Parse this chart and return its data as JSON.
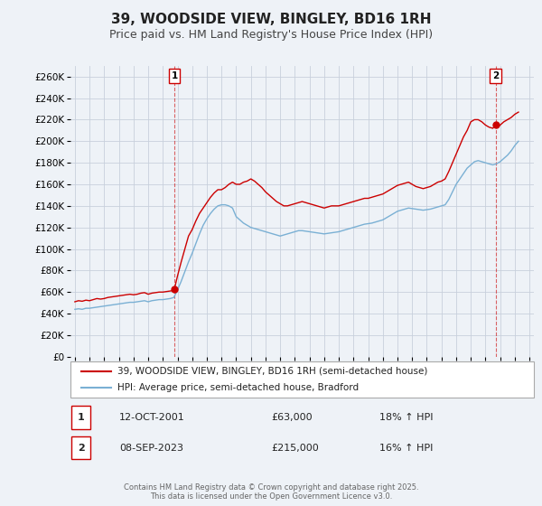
{
  "title": "39, WOODSIDE VIEW, BINGLEY, BD16 1RH",
  "subtitle": "Price paid vs. HM Land Registry's House Price Index (HPI)",
  "title_fontsize": 11,
  "subtitle_fontsize": 9,
  "background_color": "#eef2f7",
  "plot_bg_color": "#eef2f7",
  "grid_color": "#c8d0dc",
  "red_color": "#cc0000",
  "blue_color": "#7ab0d4",
  "ylim": [
    0,
    270000
  ],
  "yticks": [
    0,
    20000,
    40000,
    60000,
    80000,
    100000,
    120000,
    140000,
    160000,
    180000,
    200000,
    220000,
    240000,
    260000
  ],
  "xlim": [
    1994.7,
    2026.3
  ],
  "xticks": [
    1995,
    1996,
    1997,
    1998,
    1999,
    2000,
    2001,
    2002,
    2003,
    2004,
    2005,
    2006,
    2007,
    2008,
    2009,
    2010,
    2011,
    2012,
    2013,
    2014,
    2015,
    2016,
    2017,
    2018,
    2019,
    2020,
    2021,
    2022,
    2023,
    2024,
    2025,
    2026
  ],
  "legend_label_red": "39, WOODSIDE VIEW, BINGLEY, BD16 1RH (semi-detached house)",
  "legend_label_blue": "HPI: Average price, semi-detached house, Bradford",
  "marker1_x": 2001.79,
  "marker1_y": 63000,
  "marker2_x": 2023.69,
  "marker2_y": 215000,
  "annotation1_label": "1",
  "annotation2_label": "2",
  "table_data": [
    [
      "1",
      "12-OCT-2001",
      "£63,000",
      "18% ↑ HPI"
    ],
    [
      "2",
      "08-SEP-2023",
      "£215,000",
      "16% ↑ HPI"
    ]
  ],
  "footer": "Contains HM Land Registry data © Crown copyright and database right 2025.\nThis data is licensed under the Open Government Licence v3.0.",
  "red_hpi_data": [
    [
      1995.0,
      51000
    ],
    [
      1995.25,
      52000
    ],
    [
      1995.5,
      51500
    ],
    [
      1995.75,
      52500
    ],
    [
      1996.0,
      52000
    ],
    [
      1996.25,
      53000
    ],
    [
      1996.5,
      54000
    ],
    [
      1996.75,
      53500
    ],
    [
      1997.0,
      54000
    ],
    [
      1997.25,
      55000
    ],
    [
      1997.5,
      55500
    ],
    [
      1997.75,
      56000
    ],
    [
      1998.0,
      56500
    ],
    [
      1998.25,
      57000
    ],
    [
      1998.5,
      57500
    ],
    [
      1998.75,
      58000
    ],
    [
      1999.0,
      57500
    ],
    [
      1999.25,
      58000
    ],
    [
      1999.5,
      59000
    ],
    [
      1999.75,
      59500
    ],
    [
      2000.0,
      58000
    ],
    [
      2000.25,
      59000
    ],
    [
      2000.5,
      59500
    ],
    [
      2000.75,
      60000
    ],
    [
      2001.0,
      60000
    ],
    [
      2001.25,
      60500
    ],
    [
      2001.5,
      61000
    ],
    [
      2001.75,
      61500
    ],
    [
      2001.79,
      63000
    ],
    [
      2002.0,
      75000
    ],
    [
      2002.25,
      88000
    ],
    [
      2002.5,
      100000
    ],
    [
      2002.75,
      112000
    ],
    [
      2003.0,
      118000
    ],
    [
      2003.25,
      126000
    ],
    [
      2003.5,
      133000
    ],
    [
      2003.75,
      138000
    ],
    [
      2004.0,
      143000
    ],
    [
      2004.25,
      148000
    ],
    [
      2004.5,
      152000
    ],
    [
      2004.75,
      155000
    ],
    [
      2005.0,
      155000
    ],
    [
      2005.25,
      157000
    ],
    [
      2005.5,
      160000
    ],
    [
      2005.75,
      162000
    ],
    [
      2006.0,
      160000
    ],
    [
      2006.25,
      160000
    ],
    [
      2006.5,
      162000
    ],
    [
      2006.75,
      163000
    ],
    [
      2007.0,
      165000
    ],
    [
      2007.25,
      163000
    ],
    [
      2007.5,
      160000
    ],
    [
      2007.75,
      157000
    ],
    [
      2008.0,
      153000
    ],
    [
      2008.25,
      150000
    ],
    [
      2008.5,
      147000
    ],
    [
      2008.75,
      144000
    ],
    [
      2009.0,
      142000
    ],
    [
      2009.25,
      140000
    ],
    [
      2009.5,
      140000
    ],
    [
      2009.75,
      141000
    ],
    [
      2010.0,
      142000
    ],
    [
      2010.25,
      143000
    ],
    [
      2010.5,
      144000
    ],
    [
      2010.75,
      143000
    ],
    [
      2011.0,
      142000
    ],
    [
      2011.25,
      141000
    ],
    [
      2011.5,
      140000
    ],
    [
      2011.75,
      139000
    ],
    [
      2012.0,
      138000
    ],
    [
      2012.25,
      139000
    ],
    [
      2012.5,
      140000
    ],
    [
      2012.75,
      140000
    ],
    [
      2013.0,
      140000
    ],
    [
      2013.25,
      141000
    ],
    [
      2013.5,
      142000
    ],
    [
      2013.75,
      143000
    ],
    [
      2014.0,
      144000
    ],
    [
      2014.25,
      145000
    ],
    [
      2014.5,
      146000
    ],
    [
      2014.75,
      147000
    ],
    [
      2015.0,
      147000
    ],
    [
      2015.25,
      148000
    ],
    [
      2015.5,
      149000
    ],
    [
      2015.75,
      150000
    ],
    [
      2016.0,
      151000
    ],
    [
      2016.25,
      153000
    ],
    [
      2016.5,
      155000
    ],
    [
      2016.75,
      157000
    ],
    [
      2017.0,
      159000
    ],
    [
      2017.25,
      160000
    ],
    [
      2017.5,
      161000
    ],
    [
      2017.75,
      162000
    ],
    [
      2018.0,
      160000
    ],
    [
      2018.25,
      158000
    ],
    [
      2018.5,
      157000
    ],
    [
      2018.75,
      156000
    ],
    [
      2019.0,
      157000
    ],
    [
      2019.25,
      158000
    ],
    [
      2019.5,
      160000
    ],
    [
      2019.75,
      162000
    ],
    [
      2020.0,
      163000
    ],
    [
      2020.25,
      165000
    ],
    [
      2020.5,
      172000
    ],
    [
      2020.75,
      180000
    ],
    [
      2021.0,
      188000
    ],
    [
      2021.25,
      196000
    ],
    [
      2021.5,
      204000
    ],
    [
      2021.75,
      210000
    ],
    [
      2022.0,
      218000
    ],
    [
      2022.25,
      220000
    ],
    [
      2022.5,
      220000
    ],
    [
      2022.75,
      218000
    ],
    [
      2023.0,
      215000
    ],
    [
      2023.25,
      213000
    ],
    [
      2023.5,
      212000
    ],
    [
      2023.69,
      215000
    ],
    [
      2023.75,
      213000
    ],
    [
      2024.0,
      215000
    ],
    [
      2024.25,
      218000
    ],
    [
      2024.5,
      220000
    ],
    [
      2024.75,
      222000
    ],
    [
      2025.0,
      225000
    ],
    [
      2025.25,
      227000
    ]
  ],
  "blue_hpi_data": [
    [
      1995.0,
      44000
    ],
    [
      1995.25,
      44500
    ],
    [
      1995.5,
      44000
    ],
    [
      1995.75,
      45000
    ],
    [
      1996.0,
      45000
    ],
    [
      1996.25,
      45500
    ],
    [
      1996.5,
      46000
    ],
    [
      1996.75,
      46500
    ],
    [
      1997.0,
      47000
    ],
    [
      1997.25,
      47500
    ],
    [
      1997.5,
      48000
    ],
    [
      1997.75,
      48500
    ],
    [
      1998.0,
      49000
    ],
    [
      1998.25,
      49500
    ],
    [
      1998.5,
      50000
    ],
    [
      1998.75,
      50500
    ],
    [
      1999.0,
      50500
    ],
    [
      1999.25,
      51000
    ],
    [
      1999.5,
      51500
    ],
    [
      1999.75,
      52000
    ],
    [
      2000.0,
      51000
    ],
    [
      2000.25,
      52000
    ],
    [
      2000.5,
      52500
    ],
    [
      2000.75,
      53000
    ],
    [
      2001.0,
      53000
    ],
    [
      2001.25,
      53500
    ],
    [
      2001.5,
      54000
    ],
    [
      2001.75,
      55000
    ],
    [
      2002.0,
      62000
    ],
    [
      2002.25,
      70000
    ],
    [
      2002.5,
      79000
    ],
    [
      2002.75,
      88000
    ],
    [
      2003.0,
      96000
    ],
    [
      2003.25,
      105000
    ],
    [
      2003.5,
      114000
    ],
    [
      2003.75,
      122000
    ],
    [
      2004.0,
      128000
    ],
    [
      2004.25,
      133000
    ],
    [
      2004.5,
      137000
    ],
    [
      2004.75,
      140000
    ],
    [
      2005.0,
      141000
    ],
    [
      2005.25,
      141000
    ],
    [
      2005.5,
      140000
    ],
    [
      2005.75,
      138000
    ],
    [
      2006.0,
      130000
    ],
    [
      2006.25,
      127000
    ],
    [
      2006.5,
      124000
    ],
    [
      2006.75,
      122000
    ],
    [
      2007.0,
      120000
    ],
    [
      2007.25,
      119000
    ],
    [
      2007.5,
      118000
    ],
    [
      2007.75,
      117000
    ],
    [
      2008.0,
      116000
    ],
    [
      2008.25,
      115000
    ],
    [
      2008.5,
      114000
    ],
    [
      2008.75,
      113000
    ],
    [
      2009.0,
      112000
    ],
    [
      2009.25,
      113000
    ],
    [
      2009.5,
      114000
    ],
    [
      2009.75,
      115000
    ],
    [
      2010.0,
      116000
    ],
    [
      2010.25,
      117000
    ],
    [
      2010.5,
      117000
    ],
    [
      2010.75,
      116500
    ],
    [
      2011.0,
      116000
    ],
    [
      2011.25,
      115500
    ],
    [
      2011.5,
      115000
    ],
    [
      2011.75,
      114500
    ],
    [
      2012.0,
      114000
    ],
    [
      2012.25,
      114500
    ],
    [
      2012.5,
      115000
    ],
    [
      2012.75,
      115500
    ],
    [
      2013.0,
      116000
    ],
    [
      2013.25,
      117000
    ],
    [
      2013.5,
      118000
    ],
    [
      2013.75,
      119000
    ],
    [
      2014.0,
      120000
    ],
    [
      2014.25,
      121000
    ],
    [
      2014.5,
      122000
    ],
    [
      2014.75,
      123000
    ],
    [
      2015.0,
      123500
    ],
    [
      2015.25,
      124000
    ],
    [
      2015.5,
      125000
    ],
    [
      2015.75,
      126000
    ],
    [
      2016.0,
      127000
    ],
    [
      2016.25,
      129000
    ],
    [
      2016.5,
      131000
    ],
    [
      2016.75,
      133000
    ],
    [
      2017.0,
      135000
    ],
    [
      2017.25,
      136000
    ],
    [
      2017.5,
      137000
    ],
    [
      2017.75,
      138000
    ],
    [
      2018.0,
      137500
    ],
    [
      2018.25,
      137000
    ],
    [
      2018.5,
      136500
    ],
    [
      2018.75,
      136000
    ],
    [
      2019.0,
      136500
    ],
    [
      2019.25,
      137000
    ],
    [
      2019.5,
      138000
    ],
    [
      2019.75,
      139000
    ],
    [
      2020.0,
      140000
    ],
    [
      2020.25,
      141000
    ],
    [
      2020.5,
      146000
    ],
    [
      2020.75,
      153000
    ],
    [
      2021.0,
      160000
    ],
    [
      2021.25,
      165000
    ],
    [
      2021.5,
      170000
    ],
    [
      2021.75,
      175000
    ],
    [
      2022.0,
      178000
    ],
    [
      2022.25,
      181000
    ],
    [
      2022.5,
      182000
    ],
    [
      2022.75,
      181000
    ],
    [
      2023.0,
      180000
    ],
    [
      2023.25,
      179000
    ],
    [
      2023.5,
      178000
    ],
    [
      2023.75,
      179000
    ],
    [
      2024.0,
      181000
    ],
    [
      2024.25,
      184000
    ],
    [
      2024.5,
      187000
    ],
    [
      2024.75,
      191000
    ],
    [
      2025.0,
      196000
    ],
    [
      2025.25,
      200000
    ]
  ]
}
